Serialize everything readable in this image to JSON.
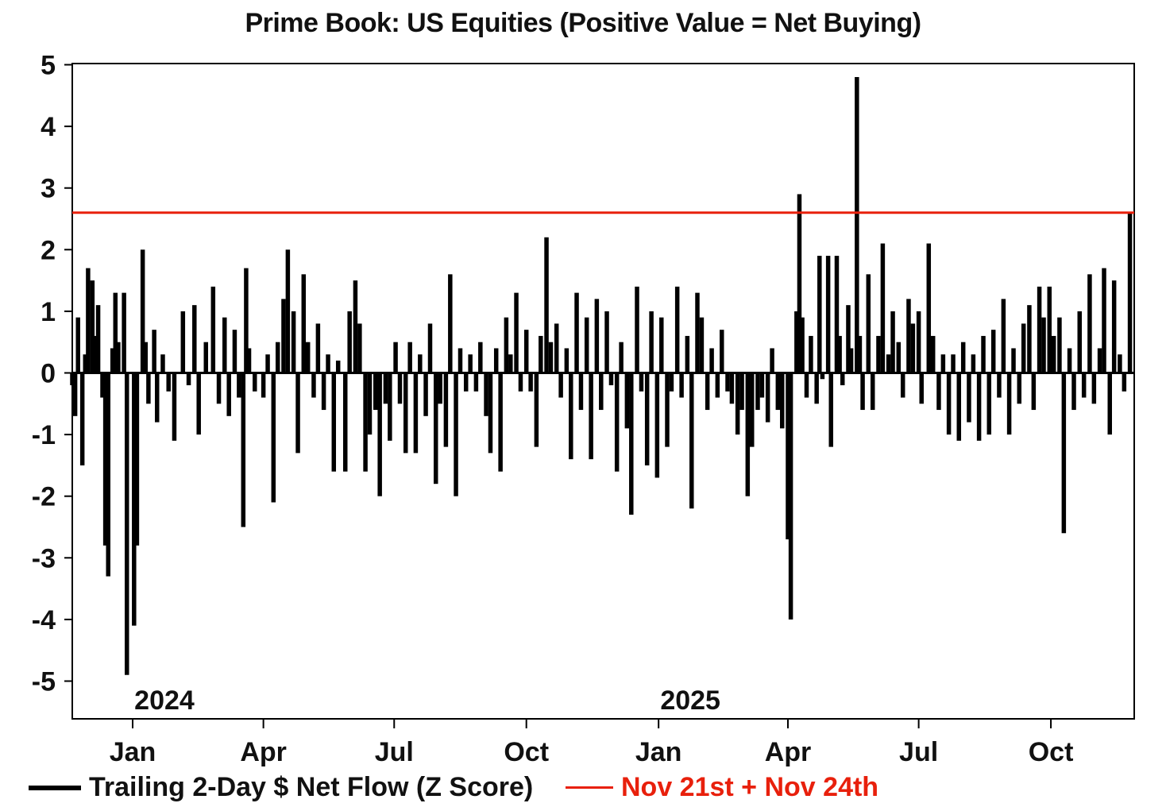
{
  "chart_data": {
    "type": "bar",
    "title": "Prime Book: US Equities (Positive Value = Net Buying)",
    "xlabel": "",
    "ylabel": "",
    "ylim": [
      -5.5,
      5
    ],
    "yticks": [
      5,
      4,
      3,
      2,
      1,
      0,
      -1,
      -2,
      -3,
      -4,
      -5
    ],
    "xlim": [
      "2023-11-20",
      "2025-11-28"
    ],
    "xticks": [
      {
        "date": "2024-01-01",
        "label": "Jan"
      },
      {
        "date": "2024-04-01",
        "label": "Apr"
      },
      {
        "date": "2024-07-01",
        "label": "Jul"
      },
      {
        "date": "2024-10-01",
        "label": "Oct"
      },
      {
        "date": "2025-01-01",
        "label": "Jan"
      },
      {
        "date": "2025-04-01",
        "label": "Apr"
      },
      {
        "date": "2025-07-01",
        "label": "Jul"
      },
      {
        "date": "2025-10-01",
        "label": "Oct"
      }
    ],
    "year_labels": [
      {
        "date": "2024-01-01",
        "label": "2024"
      },
      {
        "date": "2025-01-01",
        "label": "2025"
      }
    ],
    "grid": false,
    "series": [
      {
        "name": "Trailing 2-Day $ Net Flow (Z Score)",
        "color": "#000000",
        "points": [
          [
            "2023-11-20",
            -0.2
          ],
          [
            "2023-11-22",
            -0.7
          ],
          [
            "2023-11-24",
            0.9
          ],
          [
            "2023-11-27",
            -1.5
          ],
          [
            "2023-11-29",
            0.3
          ],
          [
            "2023-12-01",
            1.7
          ],
          [
            "2023-12-04",
            1.5
          ],
          [
            "2023-12-06",
            0.6
          ],
          [
            "2023-12-08",
            1.1
          ],
          [
            "2023-12-11",
            -0.4
          ],
          [
            "2023-12-13",
            -2.8
          ],
          [
            "2023-12-15",
            -3.3
          ],
          [
            "2023-12-18",
            0.4
          ],
          [
            "2023-12-20",
            1.3
          ],
          [
            "2023-12-22",
            0.5
          ],
          [
            "2023-12-26",
            1.3
          ],
          [
            "2023-12-28",
            -4.9
          ],
          [
            "2024-01-02",
            -4.1
          ],
          [
            "2024-01-04",
            -2.8
          ],
          [
            "2024-01-08",
            2.0
          ],
          [
            "2024-01-10",
            0.5
          ],
          [
            "2024-01-12",
            -0.5
          ],
          [
            "2024-01-16",
            0.7
          ],
          [
            "2024-01-18",
            -0.8
          ],
          [
            "2024-01-22",
            0.3
          ],
          [
            "2024-01-26",
            -0.3
          ],
          [
            "2024-01-30",
            -1.1
          ],
          [
            "2024-02-05",
            1.0
          ],
          [
            "2024-02-09",
            -0.2
          ],
          [
            "2024-02-13",
            1.1
          ],
          [
            "2024-02-16",
            -1.0
          ],
          [
            "2024-02-21",
            0.5
          ],
          [
            "2024-02-26",
            1.4
          ],
          [
            "2024-03-01",
            -0.5
          ],
          [
            "2024-03-05",
            0.9
          ],
          [
            "2024-03-08",
            -0.7
          ],
          [
            "2024-03-12",
            0.7
          ],
          [
            "2024-03-15",
            -0.4
          ],
          [
            "2024-03-18",
            -2.5
          ],
          [
            "2024-03-20",
            1.7
          ],
          [
            "2024-03-22",
            0.4
          ],
          [
            "2024-03-26",
            -0.3
          ],
          [
            "2024-04-01",
            -0.4
          ],
          [
            "2024-04-04",
            0.3
          ],
          [
            "2024-04-08",
            -2.1
          ],
          [
            "2024-04-11",
            0.5
          ],
          [
            "2024-04-15",
            1.2
          ],
          [
            "2024-04-18",
            2.0
          ],
          [
            "2024-04-22",
            1.0
          ],
          [
            "2024-04-25",
            -1.3
          ],
          [
            "2024-04-29",
            1.6
          ],
          [
            "2024-05-02",
            0.5
          ],
          [
            "2024-05-06",
            -0.4
          ],
          [
            "2024-05-09",
            0.8
          ],
          [
            "2024-05-13",
            -0.6
          ],
          [
            "2024-05-16",
            0.3
          ],
          [
            "2024-05-20",
            -1.6
          ],
          [
            "2024-05-23",
            0.2
          ],
          [
            "2024-05-28",
            -1.6
          ],
          [
            "2024-05-31",
            1.0
          ],
          [
            "2024-06-04",
            1.5
          ],
          [
            "2024-06-07",
            0.8
          ],
          [
            "2024-06-11",
            -1.6
          ],
          [
            "2024-06-14",
            -1.0
          ],
          [
            "2024-06-18",
            -0.6
          ],
          [
            "2024-06-21",
            -2.0
          ],
          [
            "2024-06-25",
            -0.5
          ],
          [
            "2024-06-28",
            -1.1
          ],
          [
            "2024-07-02",
            0.5
          ],
          [
            "2024-07-05",
            -0.5
          ],
          [
            "2024-07-09",
            -1.3
          ],
          [
            "2024-07-12",
            0.5
          ],
          [
            "2024-07-16",
            -1.3
          ],
          [
            "2024-07-19",
            0.3
          ],
          [
            "2024-07-23",
            -0.7
          ],
          [
            "2024-07-26",
            0.8
          ],
          [
            "2024-07-30",
            -1.8
          ],
          [
            "2024-08-02",
            -0.5
          ],
          [
            "2024-08-06",
            -1.2
          ],
          [
            "2024-08-09",
            1.6
          ],
          [
            "2024-08-13",
            -2.0
          ],
          [
            "2024-08-16",
            0.4
          ],
          [
            "2024-08-20",
            -0.3
          ],
          [
            "2024-08-23",
            0.3
          ],
          [
            "2024-08-27",
            -0.3
          ],
          [
            "2024-08-30",
            0.5
          ],
          [
            "2024-09-03",
            -0.7
          ],
          [
            "2024-09-06",
            -1.3
          ],
          [
            "2024-09-10",
            0.4
          ],
          [
            "2024-09-13",
            -1.6
          ],
          [
            "2024-09-17",
            0.9
          ],
          [
            "2024-09-20",
            0.3
          ],
          [
            "2024-09-24",
            1.3
          ],
          [
            "2024-09-27",
            -0.3
          ],
          [
            "2024-10-01",
            0.7
          ],
          [
            "2024-10-04",
            -0.3
          ],
          [
            "2024-10-08",
            -1.2
          ],
          [
            "2024-10-11",
            0.6
          ],
          [
            "2024-10-15",
            2.2
          ],
          [
            "2024-10-18",
            0.5
          ],
          [
            "2024-10-22",
            0.8
          ],
          [
            "2024-10-25",
            -0.4
          ],
          [
            "2024-10-29",
            0.4
          ],
          [
            "2024-11-01",
            -1.4
          ],
          [
            "2024-11-05",
            1.3
          ],
          [
            "2024-11-08",
            -0.6
          ],
          [
            "2024-11-12",
            0.9
          ],
          [
            "2024-11-15",
            -1.4
          ],
          [
            "2024-11-19",
            1.2
          ],
          [
            "2024-11-22",
            -0.6
          ],
          [
            "2024-11-26",
            1.0
          ],
          [
            "2024-11-29",
            -0.2
          ],
          [
            "2024-12-03",
            -1.6
          ],
          [
            "2024-12-06",
            0.5
          ],
          [
            "2024-12-10",
            -0.9
          ],
          [
            "2024-12-13",
            -2.3
          ],
          [
            "2024-12-17",
            1.4
          ],
          [
            "2024-12-20",
            -0.3
          ],
          [
            "2024-12-24",
            -1.5
          ],
          [
            "2024-12-27",
            1.0
          ],
          [
            "2024-12-31",
            -1.7
          ],
          [
            "2025-01-03",
            0.9
          ],
          [
            "2025-01-07",
            -1.2
          ],
          [
            "2025-01-10",
            -0.3
          ],
          [
            "2025-01-14",
            1.4
          ],
          [
            "2025-01-17",
            -0.4
          ],
          [
            "2025-01-21",
            0.6
          ],
          [
            "2025-01-24",
            -2.2
          ],
          [
            "2025-01-28",
            1.3
          ],
          [
            "2025-01-31",
            0.9
          ],
          [
            "2025-02-04",
            -0.6
          ],
          [
            "2025-02-07",
            0.4
          ],
          [
            "2025-02-11",
            -0.4
          ],
          [
            "2025-02-14",
            0.7
          ],
          [
            "2025-02-18",
            -0.3
          ],
          [
            "2025-02-21",
            -0.5
          ],
          [
            "2025-02-25",
            -1.0
          ],
          [
            "2025-02-28",
            -0.6
          ],
          [
            "2025-03-04",
            -2.0
          ],
          [
            "2025-03-07",
            -1.2
          ],
          [
            "2025-03-11",
            -0.6
          ],
          [
            "2025-03-14",
            -0.4
          ],
          [
            "2025-03-18",
            -0.8
          ],
          [
            "2025-03-21",
            0.4
          ],
          [
            "2025-03-25",
            -0.6
          ],
          [
            "2025-03-28",
            -0.9
          ],
          [
            "2025-04-01",
            -2.7
          ],
          [
            "2025-04-03",
            -4.0
          ],
          [
            "2025-04-07",
            1.0
          ],
          [
            "2025-04-09",
            2.9
          ],
          [
            "2025-04-11",
            0.9
          ],
          [
            "2025-04-14",
            -0.4
          ],
          [
            "2025-04-17",
            0.6
          ],
          [
            "2025-04-21",
            -0.5
          ],
          [
            "2025-04-23",
            1.9
          ],
          [
            "2025-04-25",
            -0.1
          ],
          [
            "2025-04-29",
            1.9
          ],
          [
            "2025-05-01",
            -1.2
          ],
          [
            "2025-05-05",
            1.9
          ],
          [
            "2025-05-07",
            0.6
          ],
          [
            "2025-05-09",
            -0.2
          ],
          [
            "2025-05-13",
            1.1
          ],
          [
            "2025-05-15",
            0.4
          ],
          [
            "2025-05-19",
            4.8
          ],
          [
            "2025-05-21",
            0.6
          ],
          [
            "2025-05-23",
            -0.6
          ],
          [
            "2025-05-27",
            1.6
          ],
          [
            "2025-05-30",
            -0.6
          ],
          [
            "2025-06-03",
            0.6
          ],
          [
            "2025-06-06",
            2.1
          ],
          [
            "2025-06-10",
            0.3
          ],
          [
            "2025-06-13",
            1.0
          ],
          [
            "2025-06-17",
            0.5
          ],
          [
            "2025-06-20",
            -0.4
          ],
          [
            "2025-06-24",
            1.2
          ],
          [
            "2025-06-27",
            0.8
          ],
          [
            "2025-07-01",
            1.0
          ],
          [
            "2025-07-03",
            -0.5
          ],
          [
            "2025-07-08",
            2.1
          ],
          [
            "2025-07-11",
            0.6
          ],
          [
            "2025-07-15",
            -0.6
          ],
          [
            "2025-07-18",
            0.3
          ],
          [
            "2025-07-22",
            -1.0
          ],
          [
            "2025-07-25",
            0.3
          ],
          [
            "2025-07-29",
            -1.1
          ],
          [
            "2025-08-01",
            0.5
          ],
          [
            "2025-08-05",
            -0.8
          ],
          [
            "2025-08-08",
            0.3
          ],
          [
            "2025-08-12",
            -1.1
          ],
          [
            "2025-08-15",
            0.6
          ],
          [
            "2025-08-19",
            -1.0
          ],
          [
            "2025-08-22",
            0.7
          ],
          [
            "2025-08-26",
            -0.4
          ],
          [
            "2025-08-29",
            1.2
          ],
          [
            "2025-09-02",
            -1.0
          ],
          [
            "2025-09-05",
            0.4
          ],
          [
            "2025-09-09",
            -0.5
          ],
          [
            "2025-09-12",
            0.8
          ],
          [
            "2025-09-16",
            1.1
          ],
          [
            "2025-09-19",
            -0.6
          ],
          [
            "2025-09-23",
            1.4
          ],
          [
            "2025-09-26",
            0.9
          ],
          [
            "2025-09-30",
            1.4
          ],
          [
            "2025-10-03",
            0.6
          ],
          [
            "2025-10-07",
            0.9
          ],
          [
            "2025-10-10",
            -2.6
          ],
          [
            "2025-10-14",
            0.4
          ],
          [
            "2025-10-17",
            -0.6
          ],
          [
            "2025-10-21",
            1.0
          ],
          [
            "2025-10-24",
            -0.4
          ],
          [
            "2025-10-28",
            1.6
          ],
          [
            "2025-10-31",
            -0.5
          ],
          [
            "2025-11-04",
            0.4
          ],
          [
            "2025-11-07",
            1.7
          ],
          [
            "2025-11-11",
            -1.0
          ],
          [
            "2025-11-14",
            1.5
          ],
          [
            "2025-11-18",
            0.3
          ],
          [
            "2025-11-21",
            -0.3
          ],
          [
            "2025-11-25",
            2.6
          ]
        ]
      },
      {
        "name": "Nov 21st + Nov 24th",
        "color": "#e8200c",
        "type": "hline",
        "value": 2.6
      }
    ],
    "legend_position": "bottom-left"
  }
}
